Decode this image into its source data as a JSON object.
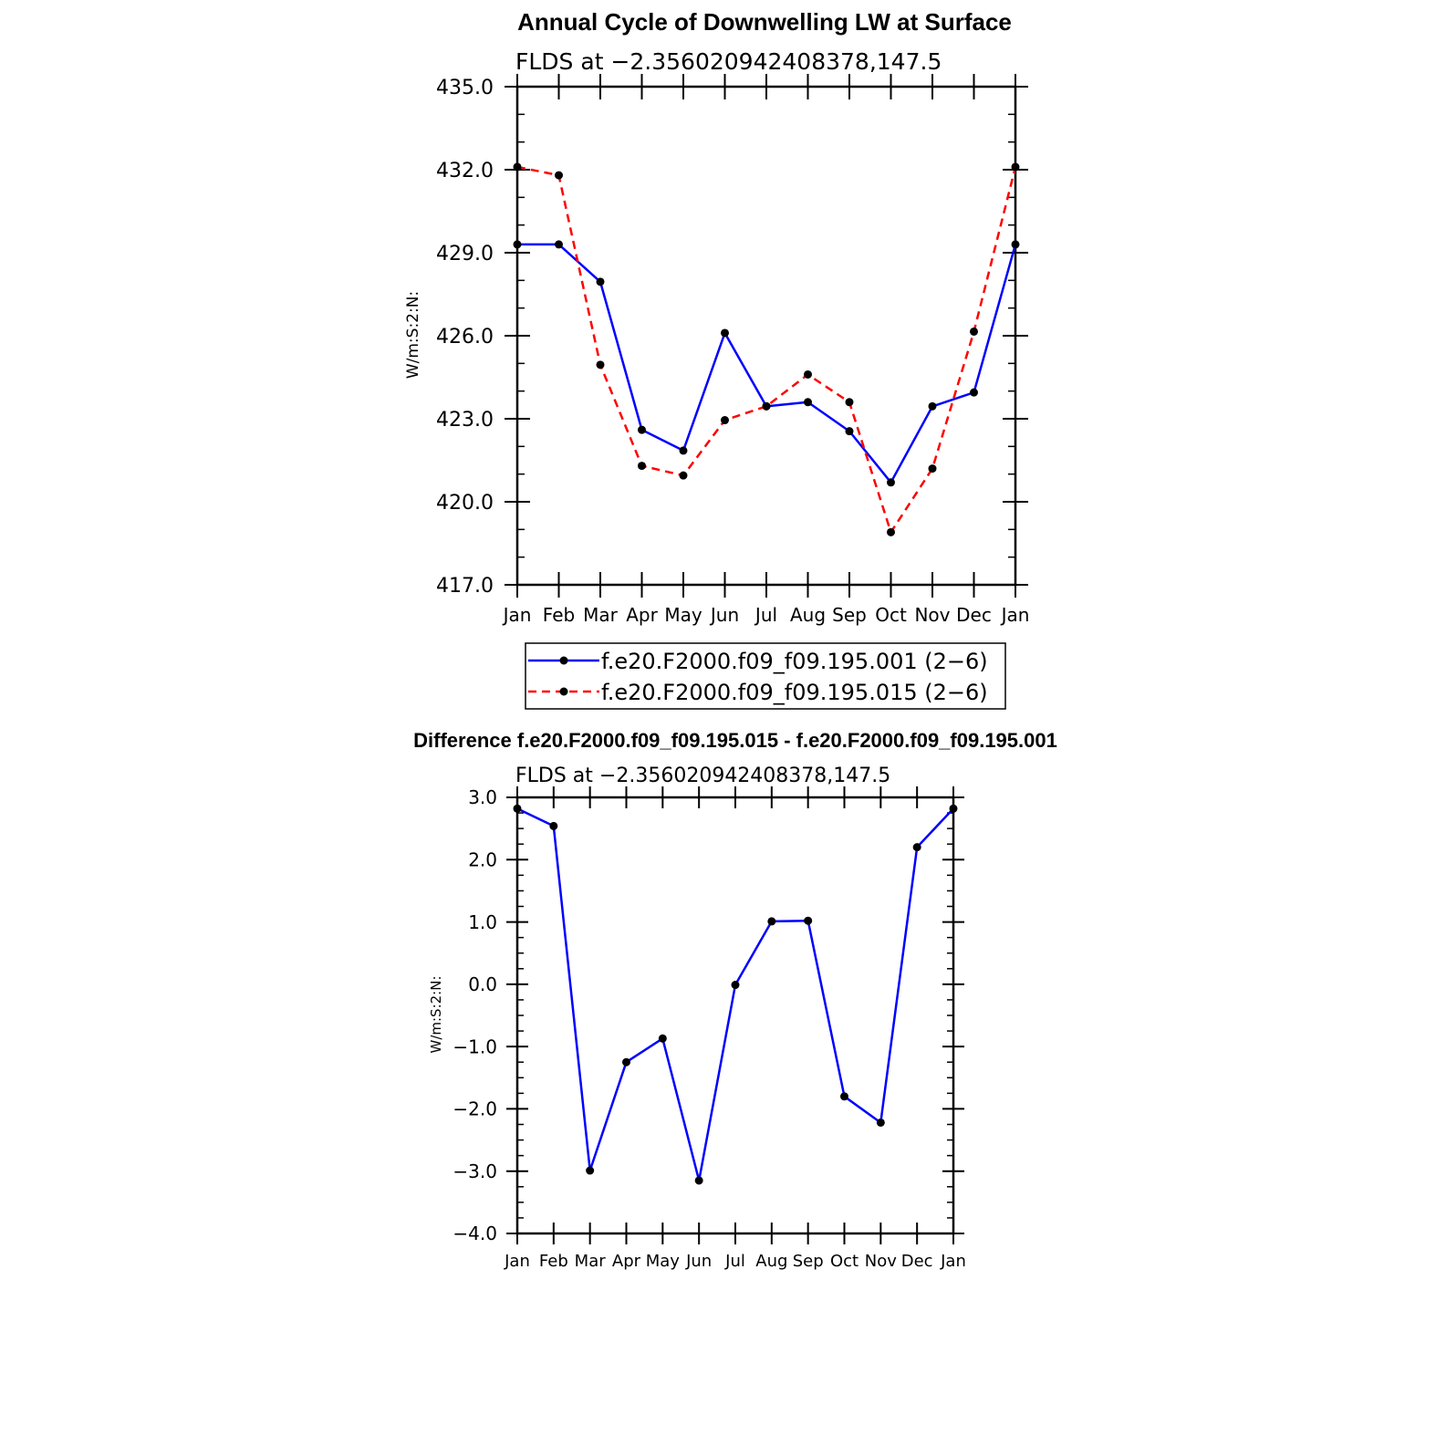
{
  "chart_data": [
    {
      "type": "line",
      "title": "Annual Cycle of Downwelling LW at Surface",
      "subtitle": "FLDS at −2.356020942408378,147.5",
      "ylabel": "W/m:S:2:N:",
      "xlabel": "",
      "categories": [
        "Jan",
        "Feb",
        "Mar",
        "Apr",
        "May",
        "Jun",
        "Jul",
        "Aug",
        "Sep",
        "Oct",
        "Nov",
        "Dec",
        "Jan"
      ],
      "ylim": [
        417.0,
        435.0
      ],
      "yticks": [
        "417.0",
        "420.0",
        "423.0",
        "426.0",
        "429.0",
        "432.0",
        "435.0"
      ],
      "grid": false,
      "legend_position": "below",
      "series": [
        {
          "name": "f.e20.F2000.f09_f09.195.001 (2−6)",
          "color": "#0000ff",
          "dash": "solid",
          "values": [
            429.3,
            429.3,
            427.95,
            422.6,
            421.85,
            426.1,
            423.45,
            423.6,
            422.55,
            420.7,
            423.45,
            423.95,
            429.3
          ]
        },
        {
          "name": "f.e20.F2000.f09_f09.195.015 (2−6)",
          "color": "#ff0000",
          "dash": "dashed",
          "values": [
            432.1,
            431.8,
            424.95,
            421.3,
            420.95,
            422.95,
            423.45,
            424.6,
            423.6,
            418.9,
            421.2,
            426.15,
            432.1
          ]
        }
      ]
    },
    {
      "type": "line",
      "title": "Difference f.e20.F2000.f09_f09.195.015 - f.e20.F2000.f09_f09.195.001",
      "subtitle": "FLDS at −2.356020942408378,147.5",
      "ylabel": "W/m:S:2:N:",
      "xlabel": "",
      "categories": [
        "Jan",
        "Feb",
        "Mar",
        "Apr",
        "May",
        "Jun",
        "Jul",
        "Aug",
        "Sep",
        "Oct",
        "Nov",
        "Dec",
        "Jan"
      ],
      "ylim": [
        -4.0,
        3.0
      ],
      "yticks": [
        "−4.0",
        "−3.0",
        "−2.0",
        "−1.0",
        "0.0",
        "1.0",
        "2.0",
        "3.0"
      ],
      "grid": false,
      "series": [
        {
          "color": "#0000ff",
          "dash": "solid",
          "values": [
            2.82,
            2.54,
            -2.99,
            -1.25,
            -0.87,
            -3.15,
            -0.01,
            1.01,
            1.02,
            -1.8,
            -2.22,
            2.2,
            2.82
          ]
        }
      ]
    }
  ]
}
